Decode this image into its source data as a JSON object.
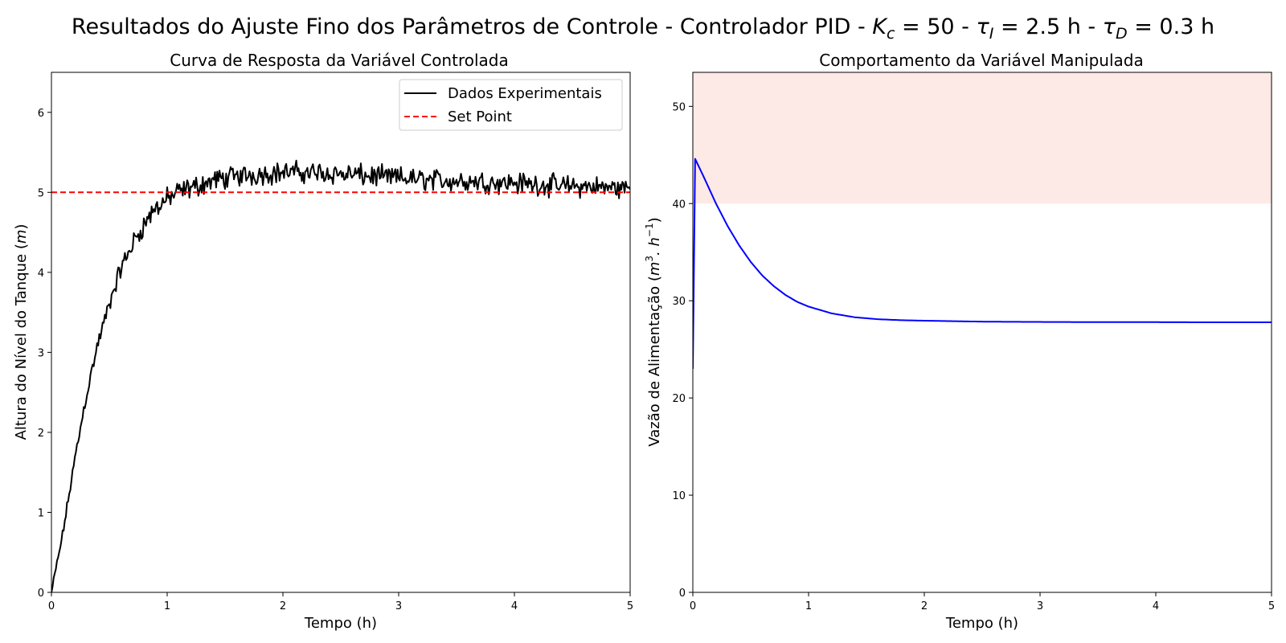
{
  "figure": {
    "title_prefix": "Resultados do Ajuste Fino dos Parâmetros de Controle - Controlador PID - ",
    "kc_symbol": "K",
    "kc_sub": "c",
    "kc_value": " = 50 - ",
    "taui_symbol": "τ",
    "taui_sub": "I",
    "taui_value": " = 2.5 h - ",
    "taud_symbol": "τ",
    "taud_sub": "D",
    "taud_value": " = 0.3 h"
  },
  "chart_data": [
    {
      "type": "line",
      "title": "Curva de Resposta da Variável Controlada",
      "xlabel": "Tempo (h)",
      "ylabel_text": "Altura do Nível do Tanque (",
      "ylabel_unit": "m",
      "ylabel_close": ")",
      "xlim": [
        0,
        5
      ],
      "ylim": [
        0,
        6.5
      ],
      "xticks": [
        0,
        1,
        2,
        3,
        4,
        5
      ],
      "yticks": [
        0,
        1,
        2,
        3,
        4,
        5,
        6
      ],
      "grid": false,
      "legend_position": "top-right",
      "series": [
        {
          "name": "Dados Experimentais",
          "color": "#000000",
          "style": "solid",
          "x": [
            0,
            0.1,
            0.2,
            0.3,
            0.4,
            0.5,
            0.6,
            0.7,
            0.8,
            0.9,
            1.0,
            1.1,
            1.2,
            1.4,
            1.6,
            1.8,
            2.0,
            2.2,
            2.4,
            2.6,
            2.8,
            3.0,
            3.2,
            3.4,
            3.6,
            3.8,
            4.0,
            4.2,
            4.4,
            4.6,
            4.8,
            5.0
          ],
          "y": [
            0,
            0.75,
            1.65,
            2.45,
            3.1,
            3.6,
            4.05,
            4.35,
            4.6,
            4.8,
            4.92,
            5.0,
            5.05,
            5.15,
            5.2,
            5.23,
            5.25,
            5.25,
            5.24,
            5.22,
            5.2,
            5.18,
            5.16,
            5.15,
            5.14,
            5.13,
            5.12,
            5.1,
            5.08,
            5.07,
            5.06,
            5.05
          ],
          "noise_amplitude": 0.12
        },
        {
          "name": "Set Point",
          "color": "#ff0000",
          "style": "dashed",
          "x": [
            0,
            5
          ],
          "y": [
            5,
            5
          ]
        }
      ]
    },
    {
      "type": "line",
      "title": "Comportamento da Variável Manipulada",
      "xlabel": "Tempo (h)",
      "ylabel_text": "Vazão de Alimentação (",
      "ylabel_unit": "m",
      "ylabel_sup1": "3",
      "ylabel_mid": ". h",
      "ylabel_sup2": "−1",
      "ylabel_close": ")",
      "xlim": [
        0,
        5
      ],
      "ylim": [
        0,
        53.5
      ],
      "xticks": [
        0,
        1,
        2,
        3,
        4,
        5
      ],
      "yticks": [
        0,
        10,
        20,
        30,
        40,
        50
      ],
      "grid": false,
      "shaded_band": {
        "y_from": 40,
        "y_to": 53.5,
        "color": "#fde9e5"
      },
      "series": [
        {
          "color": "#0000ff",
          "style": "solid",
          "x": [
            0,
            0.02,
            0.1,
            0.2,
            0.3,
            0.4,
            0.5,
            0.6,
            0.7,
            0.8,
            0.9,
            1.0,
            1.2,
            1.4,
            1.6,
            1.8,
            2.0,
            2.5,
            3.0,
            3.5,
            4.0,
            4.5,
            5.0
          ],
          "y": [
            23,
            44.6,
            42.6,
            40.0,
            37.7,
            35.7,
            34.0,
            32.6,
            31.5,
            30.6,
            29.9,
            29.4,
            28.7,
            28.3,
            28.1,
            28.0,
            27.95,
            27.85,
            27.82,
            27.8,
            27.8,
            27.78,
            27.78
          ]
        }
      ]
    }
  ]
}
